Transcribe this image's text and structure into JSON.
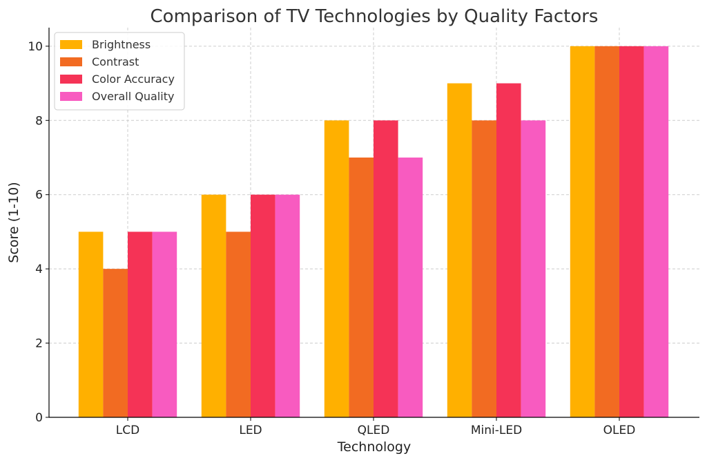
{
  "chart_data": {
    "type": "bar",
    "title": "Comparison of TV Technologies by Quality Factors",
    "xlabel": "Technology",
    "ylabel": "Score (1-10)",
    "categories": [
      "LCD",
      "LED",
      "QLED",
      "Mini-LED",
      "OLED"
    ],
    "series": [
      {
        "name": "Brightness",
        "color": "#FFB000",
        "values": [
          5,
          6,
          8,
          9,
          10
        ]
      },
      {
        "name": "Contrast",
        "color": "#F26B22",
        "values": [
          4,
          5,
          7,
          8,
          10
        ]
      },
      {
        "name": "Color Accuracy",
        "color": "#F53356",
        "values": [
          5,
          6,
          8,
          9,
          10
        ]
      },
      {
        "name": "Overall Quality",
        "color": "#F85BC0",
        "values": [
          5,
          6,
          7,
          8,
          10
        ]
      }
    ],
    "ylim": [
      0,
      10.5
    ],
    "yticks": [
      0,
      2,
      4,
      6,
      8,
      10
    ],
    "grid": true,
    "legend_position": "top-left"
  }
}
